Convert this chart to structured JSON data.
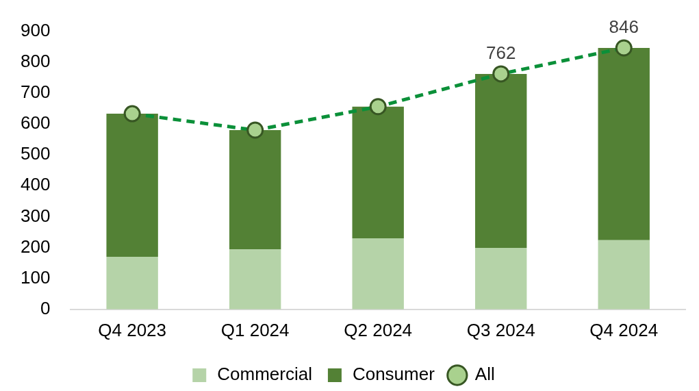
{
  "chart_data": {
    "type": "bar",
    "stacked": true,
    "categories": [
      "Q4 2023",
      "Q1 2024",
      "Q2 2024",
      "Q3 2024",
      "Q4 2024"
    ],
    "series": [
      {
        "name": "Commercial",
        "color": "#b5d3a8",
        "values": [
          170,
          194,
          230,
          199,
          224
        ]
      },
      {
        "name": "Consumer",
        "color": "#538135",
        "values": [
          463,
          386,
          426,
          563,
          622
        ]
      },
      {
        "name": "All",
        "type": "line",
        "color": "#0b9039",
        "values": [
          633,
          580,
          656,
          762,
          846
        ],
        "value_labels": [
          null,
          null,
          null,
          "762",
          "846"
        ],
        "marker": "circle",
        "line_style": "dashed"
      }
    ],
    "ylim": [
      0,
      900
    ],
    "yticks": [
      0,
      100,
      200,
      300,
      400,
      500,
      600,
      700,
      800,
      900
    ],
    "grid": false,
    "legend": "bottom"
  }
}
